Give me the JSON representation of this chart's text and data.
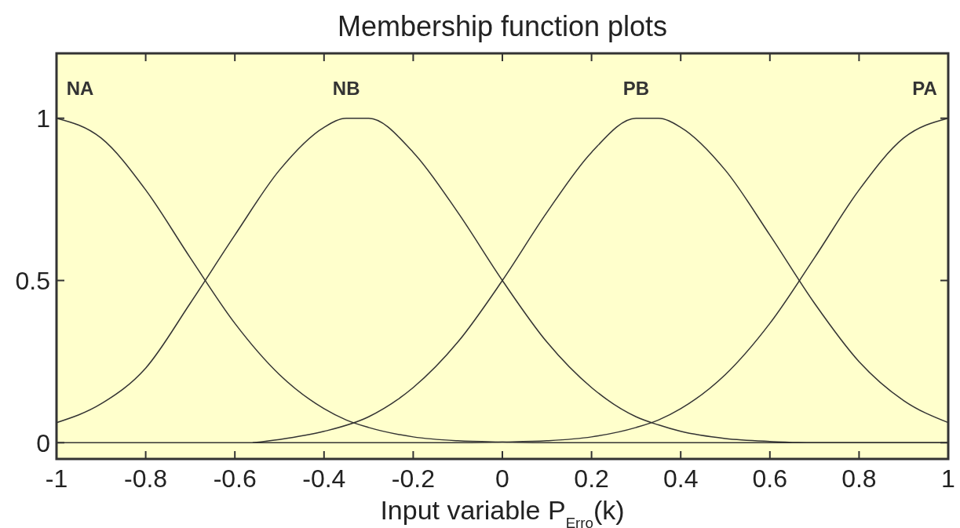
{
  "chart_data": {
    "type": "line",
    "title": "Membership function plots",
    "xlabel": "Input variable P$_{Erro}$(k)",
    "xlim": [
      -1,
      1
    ],
    "ylim": [
      -0.05,
      1.2
    ],
    "xticks": [
      -1,
      -0.8,
      -0.6,
      -0.4,
      -0.2,
      0,
      0.2,
      0.4,
      0.6,
      0.8,
      1
    ],
    "yticks": [
      0,
      0.5,
      1
    ],
    "grid": false,
    "x": [
      -1,
      -0.9,
      -0.8,
      -0.7,
      -0.6,
      -0.5,
      -0.4,
      -0.35,
      -0.3,
      -0.2,
      -0.1,
      0,
      0.1,
      0.2,
      0.3,
      0.35,
      0.4,
      0.5,
      0.6,
      0.7,
      0.8,
      0.9,
      1
    ],
    "series": [
      {
        "name": "NA",
        "color": "#333333",
        "values": [
          1,
          0.939,
          0.779,
          0.57,
          0.368,
          0.21,
          0.105,
          0.07,
          0.047,
          0.018,
          0.006,
          0.002,
          0,
          0,
          0,
          0,
          0,
          0,
          0,
          0,
          0,
          0,
          0
        ]
      },
      {
        "name": "NB",
        "color": "#333333",
        "values": [
          0.062,
          0.12,
          0.23,
          0.43,
          0.64,
          0.84,
          0.972,
          1,
          1,
          0.895,
          0.71,
          0.5,
          0.31,
          0.17,
          0.08,
          0.055,
          0.035,
          0.013,
          0.004,
          0,
          0,
          0,
          0
        ]
      },
      {
        "name": "PB",
        "color": "#333333",
        "x": [
          -0.56,
          -0.5,
          -0.4,
          -0.3,
          -0.2,
          -0.1,
          0,
          0.1,
          0.2,
          0.3,
          0.35,
          0.4,
          0.5,
          0.6,
          0.7,
          0.8,
          0.9,
          1
        ],
        "values": [
          0,
          0.01,
          0.035,
          0.08,
          0.17,
          0.31,
          0.5,
          0.71,
          0.895,
          1,
          1,
          0.972,
          0.84,
          0.64,
          0.43,
          0.25,
          0.13,
          0.062
        ]
      },
      {
        "name": "PA",
        "color": "#333333",
        "values": [
          0,
          0,
          0,
          0,
          0,
          0,
          0,
          0,
          0,
          0,
          0,
          0.002,
          0.006,
          0.018,
          0.047,
          0.07,
          0.105,
          0.21,
          0.368,
          0.57,
          0.779,
          0.939,
          1
        ]
      }
    ]
  }
}
